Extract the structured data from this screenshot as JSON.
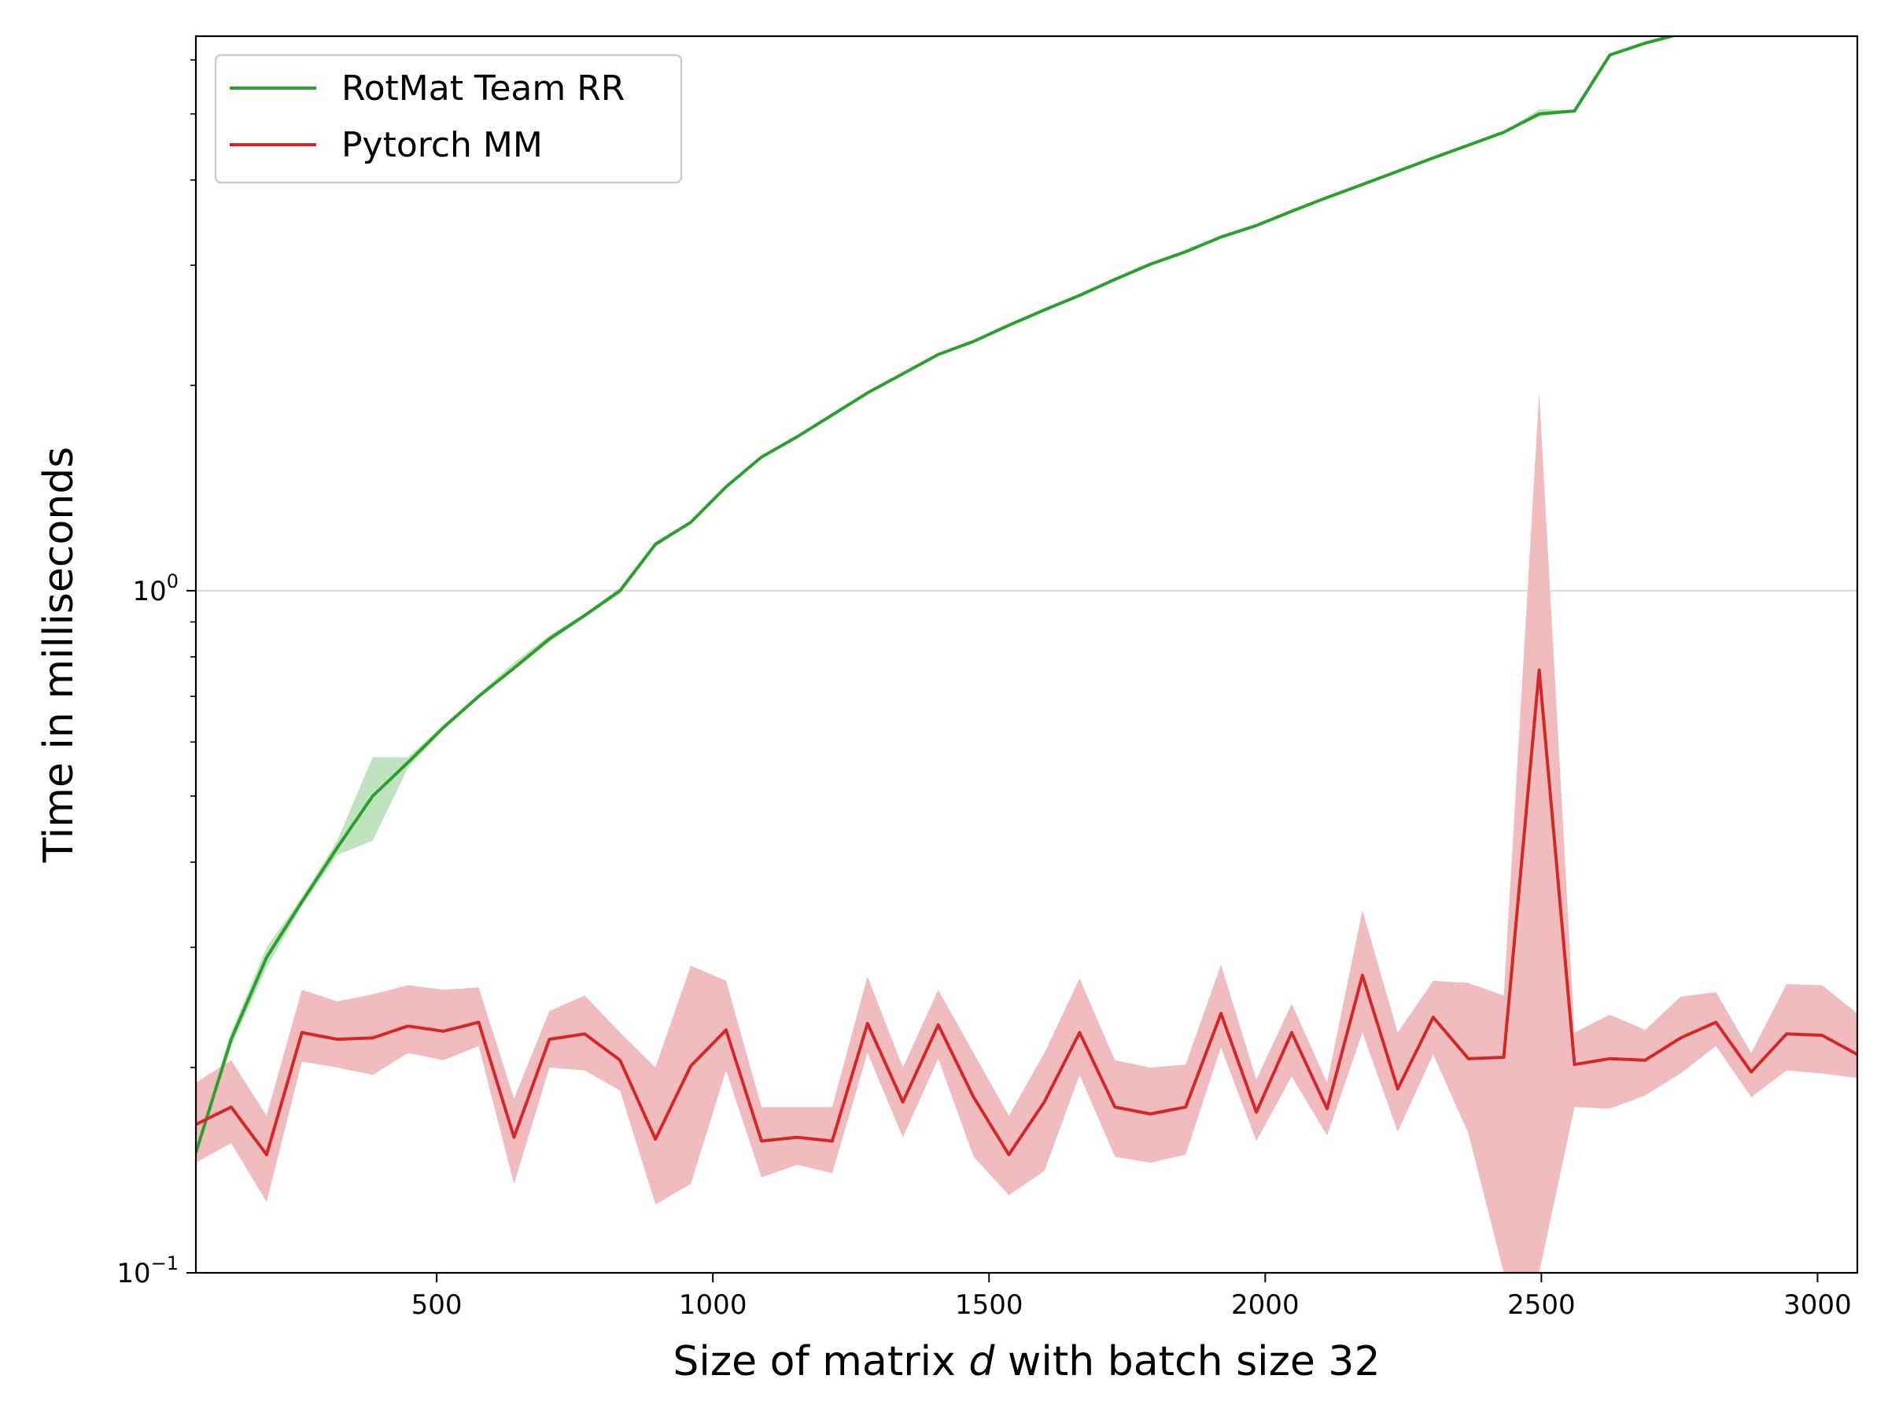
{
  "chart_data": {
    "type": "line",
    "xlabel_prefix": "Size of matrix ",
    "xlabel_var": "d",
    "xlabel_suffix": " with batch size 32",
    "ylabel": "Time in milliseconds",
    "xlim": [
      64,
      3072
    ],
    "ylim": [
      0.1,
      6.5
    ],
    "yscale": "log",
    "grid": "horizontal at 10^0",
    "legend_position": "top-left",
    "x_ticks": [
      500,
      1000,
      1500,
      2000,
      2500,
      3000
    ],
    "x_tick_labels": [
      "500",
      "1000",
      "1500",
      "2000",
      "2500",
      "3000"
    ],
    "y_ticks": [
      {
        "value": 1,
        "base": "10",
        "exp": "0"
      },
      {
        "value": 0.1,
        "base": "10",
        "exp": "−1"
      }
    ],
    "x": [
      64,
      128,
      192,
      256,
      320,
      384,
      448,
      512,
      576,
      640,
      704,
      768,
      832,
      896,
      960,
      1024,
      1088,
      1152,
      1216,
      1280,
      1344,
      1408,
      1472,
      1536,
      1600,
      1664,
      1728,
      1792,
      1856,
      1920,
      1984,
      2048,
      2112,
      2176,
      2240,
      2304,
      2368,
      2432,
      2496,
      2560,
      2624,
      2688,
      2752,
      2816,
      2880,
      2944,
      3008,
      3072
    ],
    "series": [
      {
        "name": "RotMat Team RR",
        "color": "#2ca02c",
        "values": [
          0.15,
          0.22,
          0.29,
          0.35,
          0.42,
          0.5,
          0.56,
          0.63,
          0.7,
          0.77,
          0.85,
          0.92,
          1.0,
          1.17,
          1.26,
          1.42,
          1.57,
          1.68,
          1.81,
          1.95,
          2.08,
          2.22,
          2.32,
          2.45,
          2.58,
          2.71,
          2.86,
          3.01,
          3.14,
          3.3,
          3.43,
          3.6,
          3.77,
          3.94,
          4.12,
          4.31,
          4.5,
          4.7,
          5.0,
          5.05,
          6.1,
          6.35,
          6.55,
          6.78,
          7.0,
          7.2,
          7.4,
          7.62
        ],
        "band_lower": [
          0.145,
          0.215,
          0.28,
          0.345,
          0.41,
          0.43,
          0.55,
          0.625,
          0.695,
          0.765,
          0.84,
          0.915,
          0.99,
          1.16,
          1.255,
          1.415,
          1.565,
          1.675,
          1.805,
          1.945,
          2.075,
          2.215,
          2.315,
          2.445,
          2.575,
          2.705,
          2.855,
          3.005,
          3.135,
          3.295,
          3.425,
          3.595,
          3.765,
          3.935,
          4.115,
          4.305,
          4.495,
          4.695,
          4.95,
          5.04,
          6.09,
          6.34,
          6.54,
          6.77,
          6.99,
          7.19,
          7.39,
          7.61
        ],
        "band_upper": [
          0.155,
          0.225,
          0.3,
          0.355,
          0.43,
          0.57,
          0.57,
          0.635,
          0.705,
          0.785,
          0.86,
          0.925,
          1.01,
          1.18,
          1.265,
          1.425,
          1.575,
          1.685,
          1.815,
          1.955,
          2.085,
          2.225,
          2.325,
          2.455,
          2.585,
          2.715,
          2.865,
          3.015,
          3.145,
          3.305,
          3.435,
          3.605,
          3.775,
          3.945,
          4.125,
          4.315,
          4.505,
          4.705,
          5.08,
          5.06,
          6.11,
          6.36,
          6.56,
          6.79,
          7.01,
          7.21,
          7.41,
          7.63
        ]
      },
      {
        "name": "Pytorch MM",
        "color": "#d62728",
        "band_color": "#f0b8ba",
        "values": [
          0.165,
          0.175,
          0.149,
          0.225,
          0.22,
          0.221,
          0.23,
          0.226,
          0.233,
          0.158,
          0.22,
          0.224,
          0.205,
          0.157,
          0.201,
          0.227,
          0.156,
          0.158,
          0.156,
          0.232,
          0.178,
          0.231,
          0.181,
          0.149,
          0.178,
          0.225,
          0.175,
          0.171,
          0.175,
          0.24,
          0.172,
          0.225,
          0.174,
          0.273,
          0.186,
          0.237,
          0.206,
          0.207,
          0.765,
          0.202,
          0.206,
          0.205,
          0.221,
          0.233,
          0.197,
          0.224,
          0.223,
          0.209
        ],
        "band_lower": [
          0.145,
          0.155,
          0.127,
          0.204,
          0.2,
          0.195,
          0.21,
          0.205,
          0.215,
          0.135,
          0.2,
          0.198,
          0.185,
          0.126,
          0.135,
          0.198,
          0.138,
          0.144,
          0.14,
          0.21,
          0.158,
          0.206,
          0.148,
          0.13,
          0.141,
          0.195,
          0.148,
          0.145,
          0.149,
          0.214,
          0.156,
          0.194,
          0.159,
          0.225,
          0.161,
          0.209,
          0.16,
          0.1,
          0.1,
          0.175,
          0.174,
          0.182,
          0.196,
          0.215,
          0.181,
          0.198,
          0.196,
          0.193
        ],
        "band_upper": [
          0.19,
          0.205,
          0.17,
          0.26,
          0.25,
          0.256,
          0.264,
          0.26,
          0.262,
          0.18,
          0.242,
          0.255,
          0.225,
          0.2,
          0.282,
          0.268,
          0.175,
          0.175,
          0.175,
          0.272,
          0.2,
          0.26,
          0.21,
          0.17,
          0.21,
          0.27,
          0.205,
          0.2,
          0.202,
          0.283,
          0.192,
          0.248,
          0.19,
          0.34,
          0.225,
          0.268,
          0.266,
          0.255,
          1.95,
          0.225,
          0.239,
          0.227,
          0.254,
          0.258,
          0.21,
          0.265,
          0.264,
          0.24
        ]
      }
    ]
  }
}
